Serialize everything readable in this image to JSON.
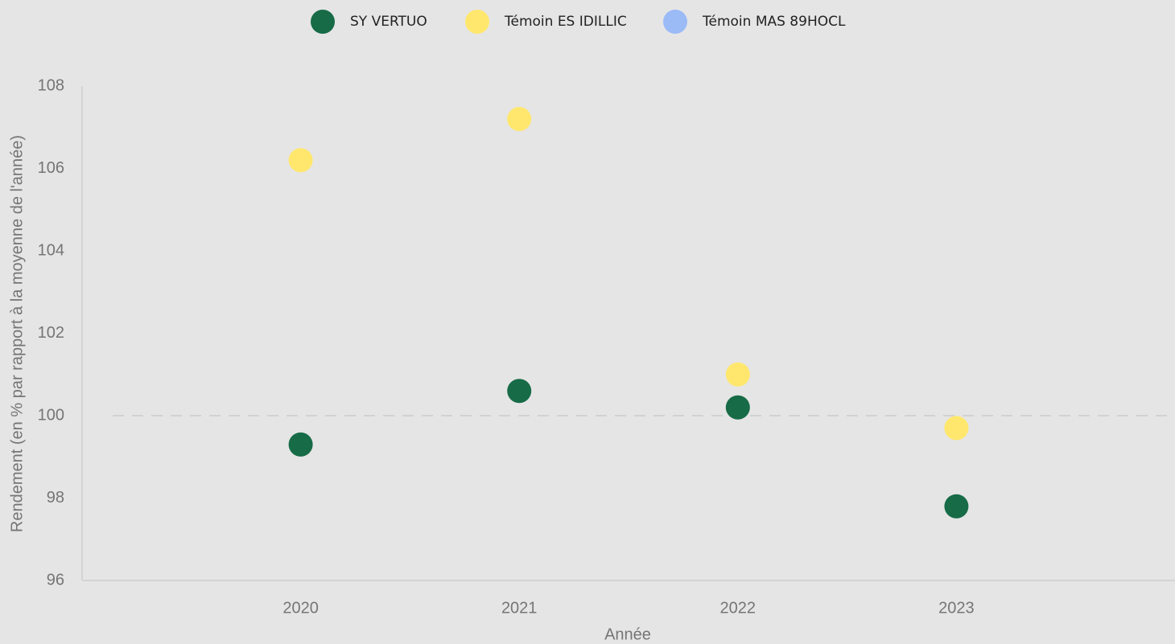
{
  "chart_data": {
    "type": "scatter",
    "x": [
      2020,
      2021,
      2022,
      2023
    ],
    "xlim": [
      2019,
      2024
    ],
    "xticks": [
      2020,
      2021,
      2022,
      2023
    ],
    "ylim": [
      96,
      108
    ],
    "yticks": [
      96,
      98,
      100,
      102,
      104,
      106,
      108
    ],
    "xlabel": "Année",
    "ylabel": "Rendement (en % par rapport à la moyenne de l'année)",
    "reference_line": 100,
    "legend": "top",
    "series": [
      {
        "name": "SY VERTUO",
        "color": "#176b47",
        "values": [
          99.3,
          100.6,
          100.2,
          97.8
        ]
      },
      {
        "name": "Témoin ES IDILLIC",
        "color": "#ffe76e",
        "values": [
          106.2,
          107.2,
          101,
          99.7
        ]
      },
      {
        "name": "Témoin MAS 89HOCL",
        "color": "#9bbbf7",
        "values": [
          null,
          null,
          null,
          null
        ]
      }
    ]
  }
}
